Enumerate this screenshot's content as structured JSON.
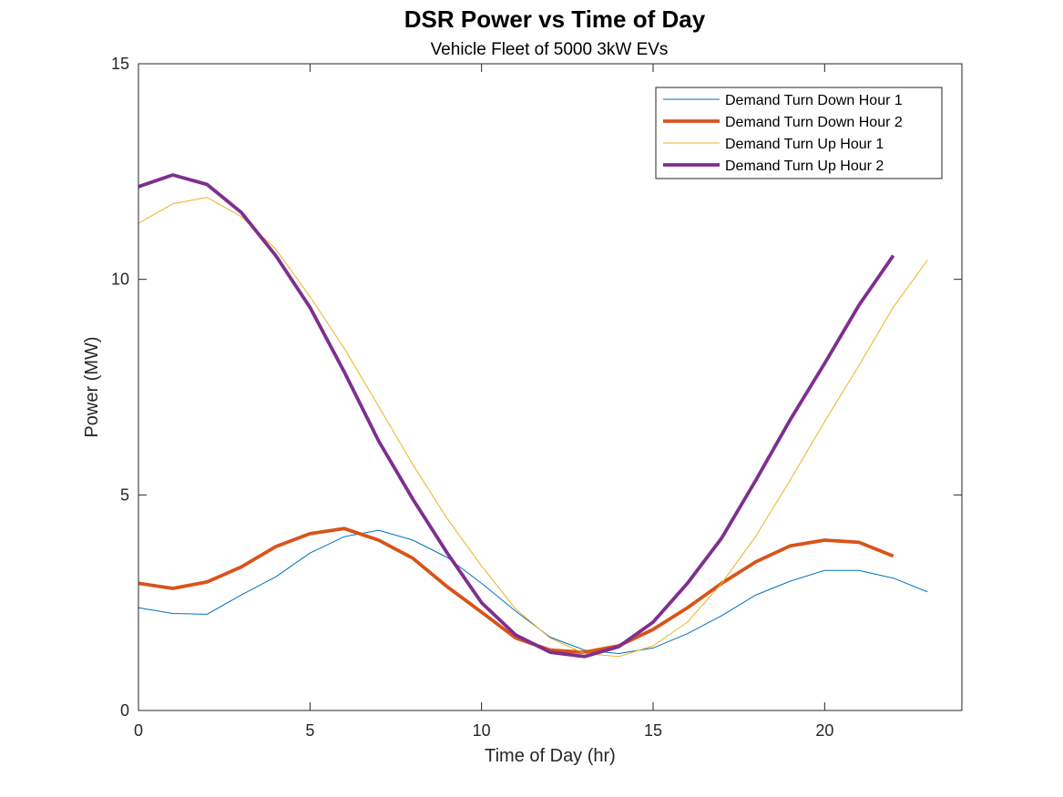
{
  "chart_data": {
    "type": "line",
    "title": "DSR Power vs Time of Day",
    "subtitle": "Vehicle Fleet of 5000  3kW EVs",
    "xlabel": "Time of Day (hr)",
    "ylabel": "Power (MW)",
    "xlim": [
      0,
      24
    ],
    "ylim": [
      0,
      15
    ],
    "xticks": [
      0,
      5,
      10,
      15,
      20
    ],
    "yticks": [
      0,
      5,
      10,
      15
    ],
    "grid": false,
    "legend_position": "top-right",
    "series": [
      {
        "name": "Demand Turn Down Hour 1",
        "color": "#0072BD",
        "line_width": "thin",
        "x": [
          0,
          1,
          2,
          3,
          4,
          5,
          6,
          7,
          8,
          9,
          10,
          11,
          12,
          13,
          14,
          15,
          16,
          17,
          18,
          19,
          20,
          21,
          22,
          23
        ],
        "values": [
          2.38,
          2.25,
          2.23,
          2.68,
          3.1,
          3.65,
          4.03,
          4.18,
          3.95,
          3.55,
          2.95,
          2.3,
          1.7,
          1.4,
          1.32,
          1.45,
          1.78,
          2.2,
          2.68,
          3.0,
          3.25,
          3.25,
          3.07,
          2.75
        ]
      },
      {
        "name": "Demand Turn Down Hour 2",
        "color": "#D95319",
        "line_width": "thick",
        "x": [
          0,
          1,
          2,
          3,
          4,
          5,
          6,
          7,
          8,
          9,
          10,
          11,
          12,
          13,
          14,
          15,
          16,
          17,
          18,
          19,
          20,
          21,
          22
        ],
        "values": [
          2.95,
          2.83,
          2.98,
          3.33,
          3.8,
          4.1,
          4.22,
          3.95,
          3.53,
          2.87,
          2.28,
          1.68,
          1.4,
          1.35,
          1.5,
          1.88,
          2.38,
          2.95,
          3.45,
          3.82,
          3.95,
          3.9,
          3.58
        ]
      },
      {
        "name": "Demand Turn Up Hour 1",
        "color": "#EDB120",
        "line_width": "thin",
        "x": [
          0,
          1,
          2,
          3,
          4,
          5,
          6,
          7,
          8,
          9,
          10,
          11,
          12,
          13,
          14,
          15,
          16,
          17,
          18,
          19,
          20,
          21,
          22,
          23
        ],
        "values": [
          11.3,
          11.75,
          11.9,
          11.45,
          10.7,
          9.6,
          8.4,
          7.05,
          5.7,
          4.45,
          3.35,
          2.35,
          1.68,
          1.32,
          1.25,
          1.5,
          2.05,
          2.95,
          4.05,
          5.35,
          6.7,
          8.0,
          9.35,
          10.45
        ]
      },
      {
        "name": "Demand Turn Up Hour 2",
        "color": "#7E2F8E",
        "line_width": "thick",
        "x": [
          0,
          1,
          2,
          3,
          4,
          5,
          6,
          7,
          8,
          9,
          10,
          11,
          12,
          13,
          14,
          15,
          16,
          17,
          18,
          19,
          20,
          21,
          22
        ],
        "values": [
          12.15,
          12.42,
          12.2,
          11.55,
          10.55,
          9.35,
          7.85,
          6.25,
          4.9,
          3.65,
          2.5,
          1.75,
          1.35,
          1.25,
          1.48,
          2.05,
          2.95,
          4.0,
          5.35,
          6.75,
          8.05,
          9.4,
          10.55
        ]
      }
    ]
  }
}
